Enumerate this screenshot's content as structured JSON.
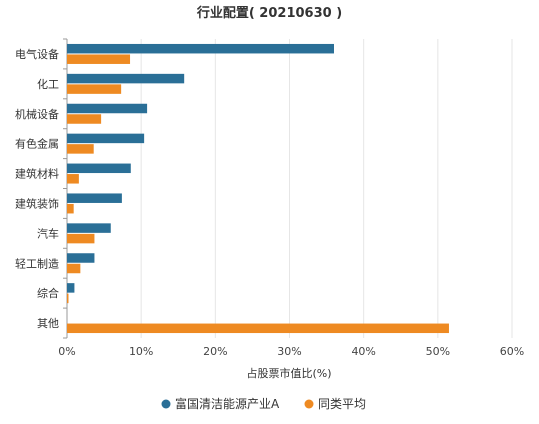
{
  "chart_data": {
    "type": "bar",
    "orientation": "horizontal",
    "title": "行业配置( 20210630 )",
    "xlabel": "占股票市值比(%)",
    "ylabel": "",
    "categories": [
      "电气设备",
      "化工",
      "机械设备",
      "有色金属",
      "建筑材料",
      "建筑装饰",
      "汽车",
      "轻工制造",
      "综合",
      "其他"
    ],
    "xlim": [
      0,
      60
    ],
    "ticks": [
      0,
      10,
      20,
      30,
      40,
      50,
      60
    ],
    "tick_suffix": "%",
    "grid": true,
    "legend_position": "bottom",
    "series": [
      {
        "name": "富国清洁能源产业A",
        "color": "#2a6f97",
        "values": [
          36.0,
          15.8,
          10.8,
          10.4,
          8.6,
          7.4,
          5.9,
          3.7,
          1.0,
          0.0
        ]
      },
      {
        "name": "同类平均",
        "color": "#ee8a22",
        "values": [
          8.5,
          7.3,
          4.6,
          3.6,
          1.6,
          0.9,
          3.7,
          1.8,
          0.2,
          51.5
        ]
      }
    ]
  }
}
